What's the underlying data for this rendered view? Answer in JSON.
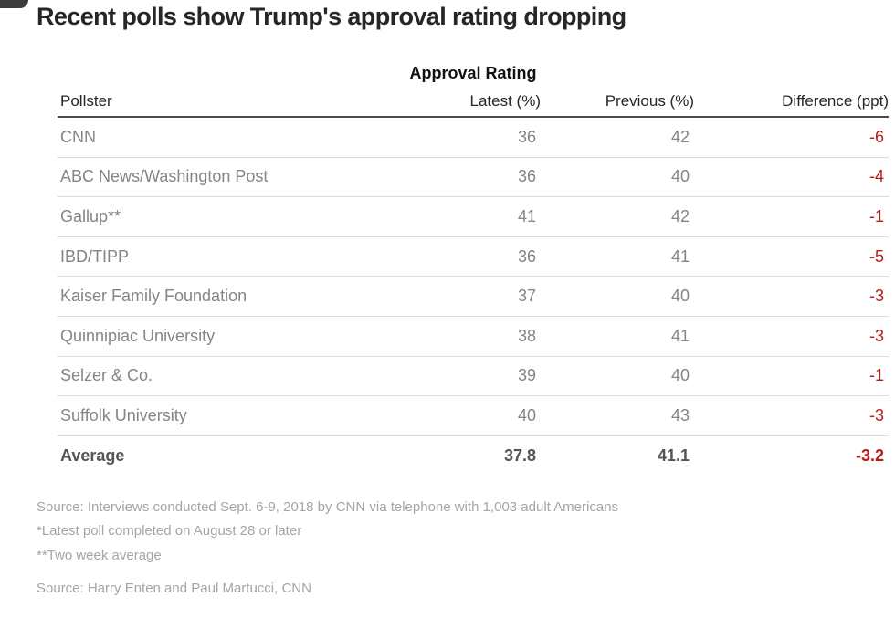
{
  "title": "Recent polls show Trump's approval rating dropping",
  "chart_data": {
    "type": "table",
    "title": "Approval Rating",
    "columns": [
      "Pollster",
      "Latest (%)",
      "Previous (%)",
      "Difference (ppt)"
    ],
    "rows": [
      [
        "CNN",
        "36",
        "42",
        "-6"
      ],
      [
        "ABC News/Washington Post",
        "36",
        "40",
        "-4"
      ],
      [
        "Gallup**",
        "41",
        "42",
        "-1"
      ],
      [
        "IBD/TIPP",
        "36",
        "41",
        "-5"
      ],
      [
        "Kaiser Family Foundation",
        "37",
        "40",
        "-3"
      ],
      [
        "Quinnipiac University",
        "38",
        "41",
        "-3"
      ],
      [
        "Selzer & Co.",
        "39",
        "40",
        "-1"
      ],
      [
        "Suffolk University",
        "40",
        "43",
        "-3"
      ]
    ],
    "average_row": [
      "Average",
      "37.8",
      "41.1",
      "-3.2"
    ]
  },
  "footnotes": [
    "Source: Interviews conducted Sept. 6-9, 2018 by CNN via telephone with 1,003 adult Americans",
    "*Latest poll completed on August 28 or later",
    "**Two week average"
  ],
  "credit": "Source: Harry Enten and Paul Martucci, CNN",
  "colors": {
    "negative": "#b81c18",
    "header_rule": "#4a4a4a",
    "row_rule": "#dcdcdc",
    "row_text": "#858585",
    "title_text": "#262626",
    "footnote_text": "#a5a5a5"
  }
}
